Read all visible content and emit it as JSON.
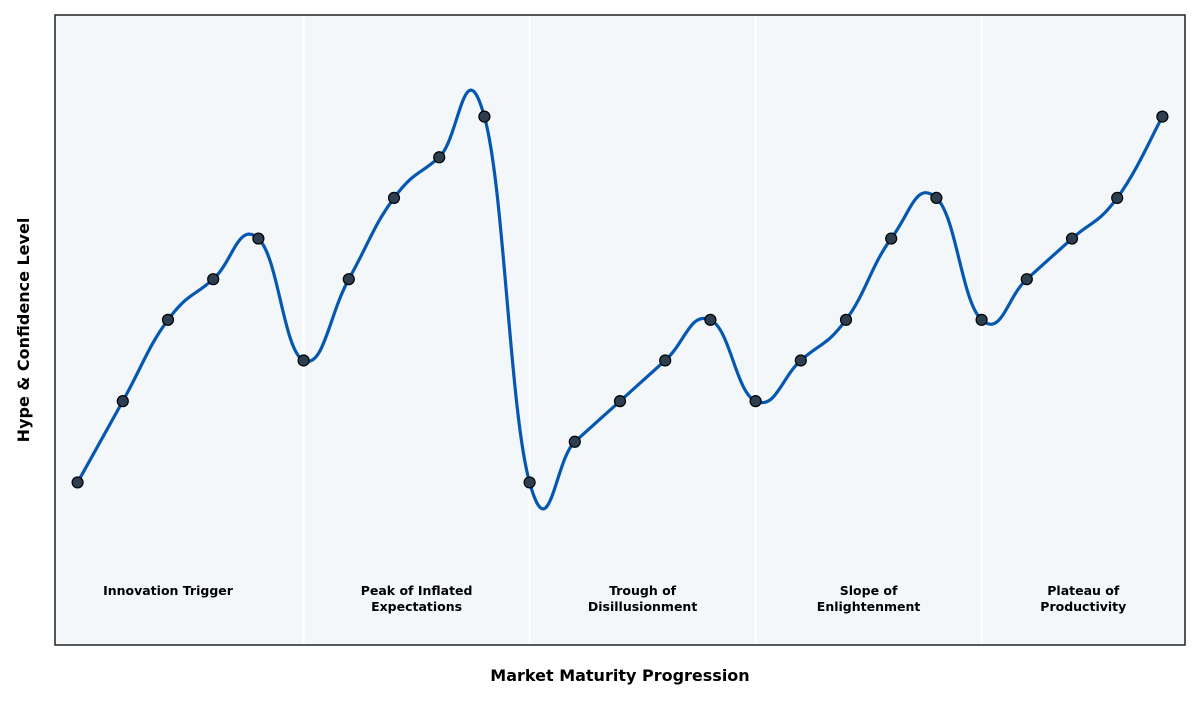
{
  "chart_data": {
    "type": "line",
    "xlabel": "Market Maturity Progression",
    "ylabel": "Hype & Confidence Level",
    "x": [
      1,
      2,
      3,
      4,
      5,
      6,
      7,
      8,
      9,
      10,
      11,
      12,
      13,
      14,
      15,
      16,
      17,
      18,
      19,
      20,
      21,
      22,
      23,
      24,
      25
    ],
    "series": [
      {
        "values": [
          2,
          4,
          6,
          7,
          8,
          5,
          7,
          9,
          10,
          11,
          2,
          3,
          4,
          5,
          6,
          4,
          5,
          6,
          8,
          9,
          6,
          7,
          8,
          9,
          11
        ]
      }
    ],
    "xlim": [
      0.5,
      25.5
    ],
    "ylim": [
      -2,
      13.5
    ],
    "grid": false,
    "phases": [
      {
        "label_lines": [
          "Innovation Trigger"
        ],
        "x_start": 0.5,
        "x_end": 6
      },
      {
        "label_lines": [
          "Peak of Inflated",
          "Expectations"
        ],
        "x_start": 6,
        "x_end": 11
      },
      {
        "label_lines": [
          "Trough of",
          "Disillusionment"
        ],
        "x_start": 11,
        "x_end": 16
      },
      {
        "label_lines": [
          "Slope of",
          "Enlightenment"
        ],
        "x_start": 16,
        "x_end": 21
      },
      {
        "label_lines": [
          "Plateau of",
          "Productivity"
        ],
        "x_start": 21,
        "x_end": 25.5
      }
    ],
    "colors": {
      "line": "#0557b0",
      "marker_fill": "#2d3e50",
      "marker_edge": "#000000",
      "background": "#f3f7fa",
      "phase_divider": "#ffffff",
      "frame": "#222222"
    }
  }
}
